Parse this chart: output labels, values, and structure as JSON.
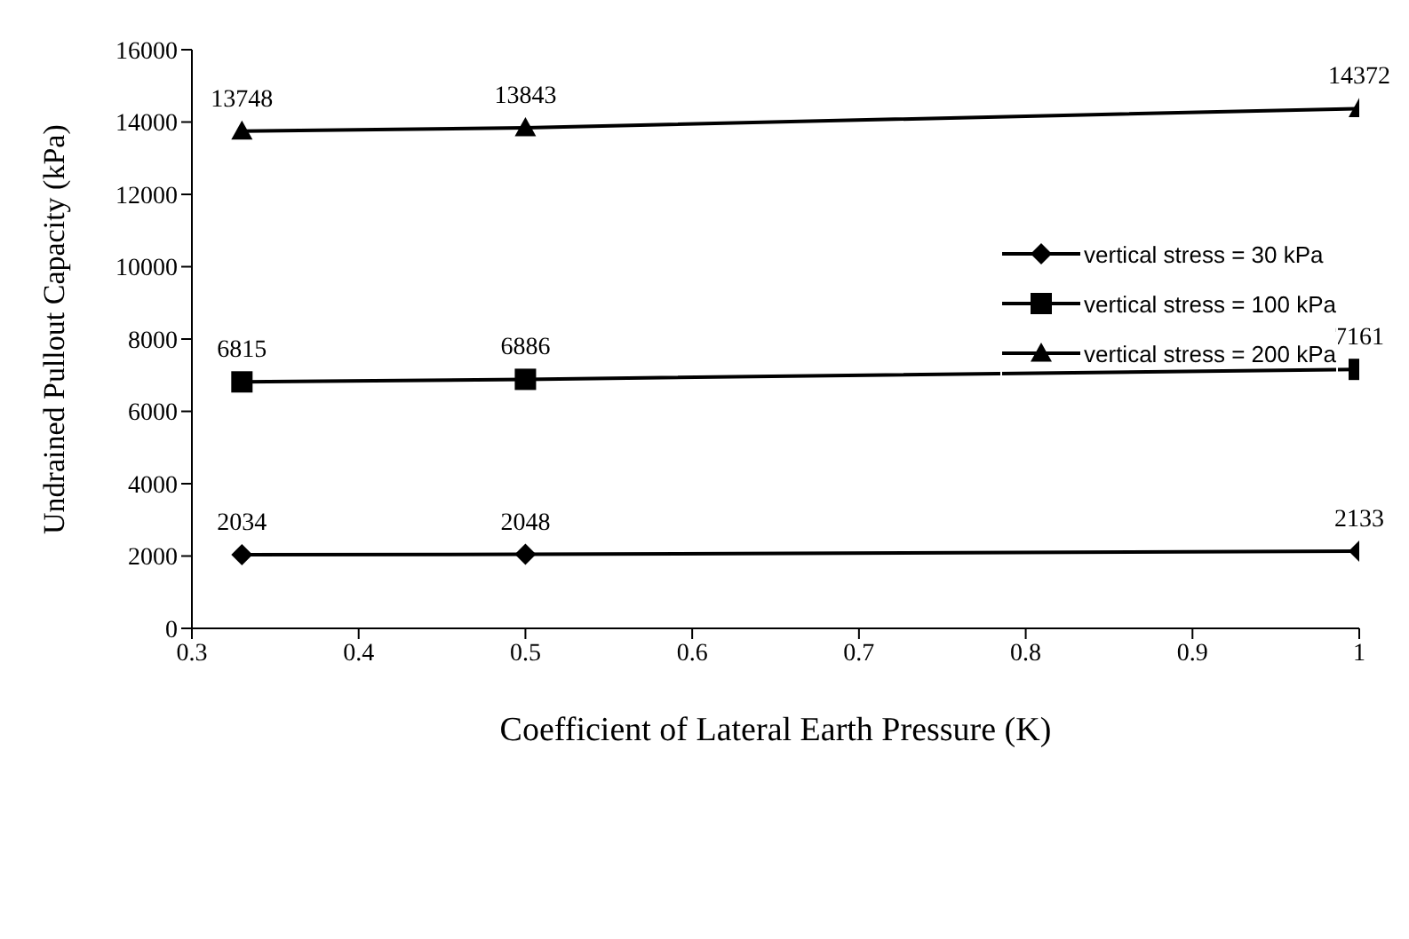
{
  "chart_data": {
    "type": "line",
    "xlabel": "Coefficient of Lateral Earth Pressure (K)",
    "ylabel": "Undrained Pullout Capacity (kPa)",
    "x": [
      0.33,
      0.5,
      1.0
    ],
    "xlim": [
      0.3,
      1
    ],
    "xticks": [
      0.3,
      0.4,
      0.5,
      0.6,
      0.7,
      0.8,
      0.9,
      1
    ],
    "ylim": [
      0,
      16000
    ],
    "yticks": [
      0,
      2000,
      4000,
      6000,
      8000,
      10000,
      12000,
      14000,
      16000
    ],
    "grid": false,
    "legend": "top right",
    "data_labels": true,
    "line_style": "solid",
    "series": [
      {
        "name": "vertical stress = 30 kPa",
        "color": "#000000",
        "marker": "diamond",
        "values": [
          2034,
          2048,
          2133
        ]
      },
      {
        "name": "vertical stress = 100 kPa",
        "color": "#000000",
        "marker": "square",
        "values": [
          6815,
          6886,
          7161
        ]
      },
      {
        "name": "vertical stress = 200 kPa",
        "color": "#000000",
        "marker": "triangle",
        "values": [
          13748,
          13843,
          14372
        ]
      }
    ]
  }
}
